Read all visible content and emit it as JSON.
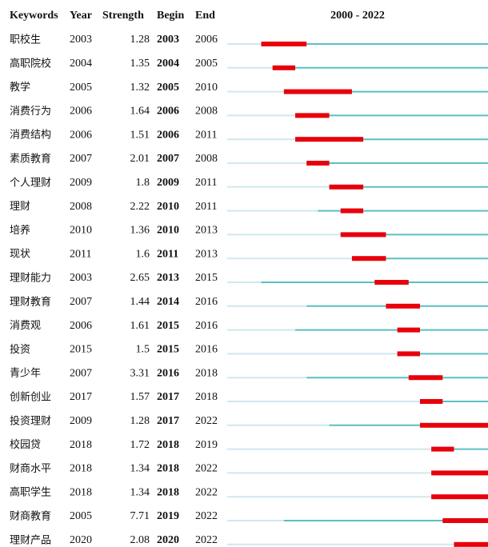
{
  "header": {
    "keyword": "Keywords",
    "year": "Year",
    "strength": "Strength",
    "begin": "Begin",
    "end": "End",
    "timeline": "2000 - 2022"
  },
  "table": {
    "rows": [
      [
        "职校生",
        2003,
        1.28,
        2003,
        2006
      ],
      [
        "高职院校",
        2004,
        1.35,
        2004,
        2005
      ],
      [
        "教学",
        2005,
        1.32,
        2005,
        2010
      ],
      [
        "消费行为",
        2006,
        1.64,
        2006,
        2008
      ],
      [
        "消费结构",
        2006,
        1.51,
        2006,
        2011
      ],
      [
        "素质教育",
        2007,
        2.01,
        2007,
        2008
      ],
      [
        "个人理财",
        2009,
        1.8,
        2009,
        2011
      ],
      [
        "理财",
        2008,
        2.22,
        2010,
        2011
      ],
      [
        "培养",
        2010,
        1.36,
        2010,
        2013
      ],
      [
        "现状",
        2011,
        1.6,
        2011,
        2013
      ],
      [
        "理财能力",
        2003,
        2.65,
        2013,
        2015
      ],
      [
        "理财教育",
        2007,
        1.44,
        2014,
        2016
      ],
      [
        "消费观",
        2006,
        1.61,
        2015,
        2016
      ],
      [
        "投资",
        2015,
        1.5,
        2015,
        2016
      ],
      [
        "青少年",
        2007,
        3.31,
        2016,
        2018
      ],
      [
        "创新创业",
        2017,
        1.57,
        2017,
        2018
      ],
      [
        "投资理财",
        2009,
        1.28,
        2017,
        2022
      ],
      [
        "校园贷",
        2018,
        1.72,
        2018,
        2019
      ],
      [
        "财商水平",
        2018,
        1.34,
        2018,
        2022
      ],
      [
        "高职学生",
        2018,
        1.34,
        2018,
        2022
      ],
      [
        "财商教育",
        2005,
        7.71,
        2019,
        2022
      ],
      [
        "理财产品",
        2020,
        2.08,
        2020,
        2022
      ]
    ]
  }
}
